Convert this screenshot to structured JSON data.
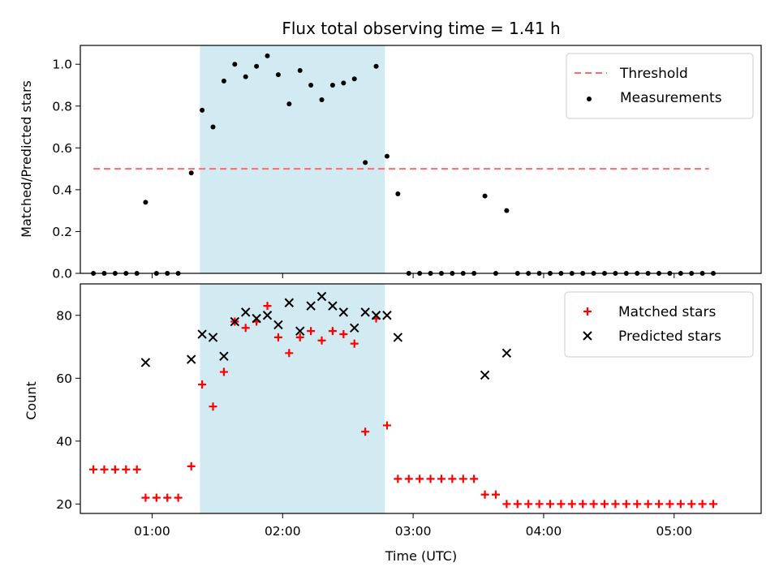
{
  "title": "Flux total observing time = 1.41 h",
  "chart_data": [
    {
      "type": "scatter",
      "panel": "top",
      "ylabel": "Matched/Predicted stars",
      "xlim": [
        "00:27",
        "05:40"
      ],
      "ylim": [
        0,
        1.09
      ],
      "y_ticks": [
        0.0,
        0.2,
        0.4,
        0.6,
        0.8,
        1.0
      ],
      "y_tick_labels": [
        "0.0",
        "0.2",
        "0.4",
        "0.6",
        "0.8",
        "1.0"
      ],
      "legend_position": "upper right",
      "shaded_region": {
        "start": "01:22",
        "end": "02:47",
        "color": "#add8e6"
      },
      "threshold": {
        "name": "Threshold",
        "value": 0.5,
        "x_start": "00:33",
        "x_end": "05:16",
        "color": "#ff6b6b"
      },
      "series": [
        {
          "name": "Measurements",
          "marker": "dot",
          "color": "#000000",
          "x": [
            "00:33",
            "00:38",
            "00:43",
            "00:48",
            "00:53",
            "00:57",
            "01:02",
            "01:07",
            "01:12",
            "01:18",
            "01:23",
            "01:28",
            "01:33",
            "01:38",
            "01:43",
            "01:48",
            "01:53",
            "01:58",
            "02:03",
            "02:08",
            "02:13",
            "02:18",
            "02:23",
            "02:28",
            "02:33",
            "02:38",
            "02:43",
            "02:48",
            "02:53",
            "02:58",
            "03:03",
            "03:08",
            "03:13",
            "03:18",
            "03:23",
            "03:28",
            "03:33",
            "03:38",
            "03:43",
            "03:48",
            "03:53",
            "03:58",
            "04:03",
            "04:08",
            "04:13",
            "04:18",
            "04:23",
            "04:28",
            "04:33",
            "04:38",
            "04:43",
            "04:48",
            "04:53",
            "04:58",
            "05:03",
            "05:08",
            "05:13",
            "05:18"
          ],
          "y": [
            0,
            0,
            0,
            0,
            0,
            0.34,
            0,
            0,
            0,
            0.48,
            0.78,
            0.7,
            0.92,
            1.0,
            0.94,
            0.99,
            1.04,
            0.95,
            0.81,
            0.97,
            0.9,
            0.83,
            0.9,
            0.91,
            0.93,
            0.53,
            0.99,
            0.56,
            0.38,
            0,
            0,
            0,
            0,
            0,
            0,
            0,
            0.37,
            0,
            0.3,
            0,
            0,
            0,
            0,
            0,
            0,
            0,
            0,
            0,
            0,
            0,
            0,
            0,
            0,
            0,
            0,
            0,
            0,
            0
          ]
        }
      ]
    },
    {
      "type": "scatter",
      "panel": "bottom",
      "xlabel": "Time (UTC)",
      "ylabel": "Count",
      "xlim": [
        "00:27",
        "05:40"
      ],
      "ylim": [
        17,
        90
      ],
      "x_ticks": [
        "01:00",
        "02:00",
        "03:00",
        "04:00",
        "05:00"
      ],
      "y_ticks": [
        20,
        40,
        60,
        80
      ],
      "y_tick_labels": [
        "20",
        "40",
        "60",
        "80"
      ],
      "legend_position": "upper right",
      "shaded_region": {
        "start": "01:22",
        "end": "02:47",
        "color": "#add8e6"
      },
      "series": [
        {
          "name": "Matched stars",
          "marker": "plus",
          "color": "#ff0000",
          "x": [
            "00:33",
            "00:38",
            "00:43",
            "00:48",
            "00:53",
            "00:57",
            "01:02",
            "01:07",
            "01:12",
            "01:18",
            "01:23",
            "01:28",
            "01:33",
            "01:38",
            "01:43",
            "01:48",
            "01:53",
            "01:58",
            "02:03",
            "02:08",
            "02:13",
            "02:18",
            "02:23",
            "02:28",
            "02:33",
            "02:38",
            "02:43",
            "02:48",
            "02:53",
            "02:58",
            "03:03",
            "03:08",
            "03:13",
            "03:18",
            "03:23",
            "03:28",
            "03:33",
            "03:38",
            "03:43",
            "03:48",
            "03:53",
            "03:58",
            "04:03",
            "04:08",
            "04:13",
            "04:18",
            "04:23",
            "04:28",
            "04:33",
            "04:38",
            "04:43",
            "04:48",
            "04:53",
            "04:58",
            "05:03",
            "05:08",
            "05:13",
            "05:18"
          ],
          "y": [
            31,
            31,
            31,
            31,
            31,
            22,
            22,
            22,
            22,
            32,
            58,
            51,
            62,
            78,
            76,
            78,
            83,
            73,
            68,
            73,
            75,
            72,
            75,
            74,
            71,
            43,
            79,
            45,
            28,
            28,
            28,
            28,
            28,
            28,
            28,
            28,
            23,
            23,
            20,
            20,
            20,
            20,
            20,
            20,
            20,
            20,
            20,
            20,
            20,
            20,
            20,
            20,
            20,
            20,
            20,
            20,
            20,
            20
          ]
        },
        {
          "name": "Predicted stars",
          "marker": "cross",
          "color": "#000000",
          "x": [
            "00:57",
            "01:18",
            "01:23",
            "01:28",
            "01:33",
            "01:38",
            "01:43",
            "01:48",
            "01:53",
            "01:58",
            "02:03",
            "02:08",
            "02:13",
            "02:18",
            "02:23",
            "02:28",
            "02:33",
            "02:38",
            "02:43",
            "02:48",
            "02:53",
            "03:33",
            "03:43"
          ],
          "y": [
            65,
            66,
            74,
            73,
            67,
            78,
            81,
            79,
            80,
            77,
            84,
            75,
            83,
            86,
            83,
            81,
            76,
            81,
            80,
            80,
            73,
            61,
            68
          ]
        }
      ]
    }
  ]
}
